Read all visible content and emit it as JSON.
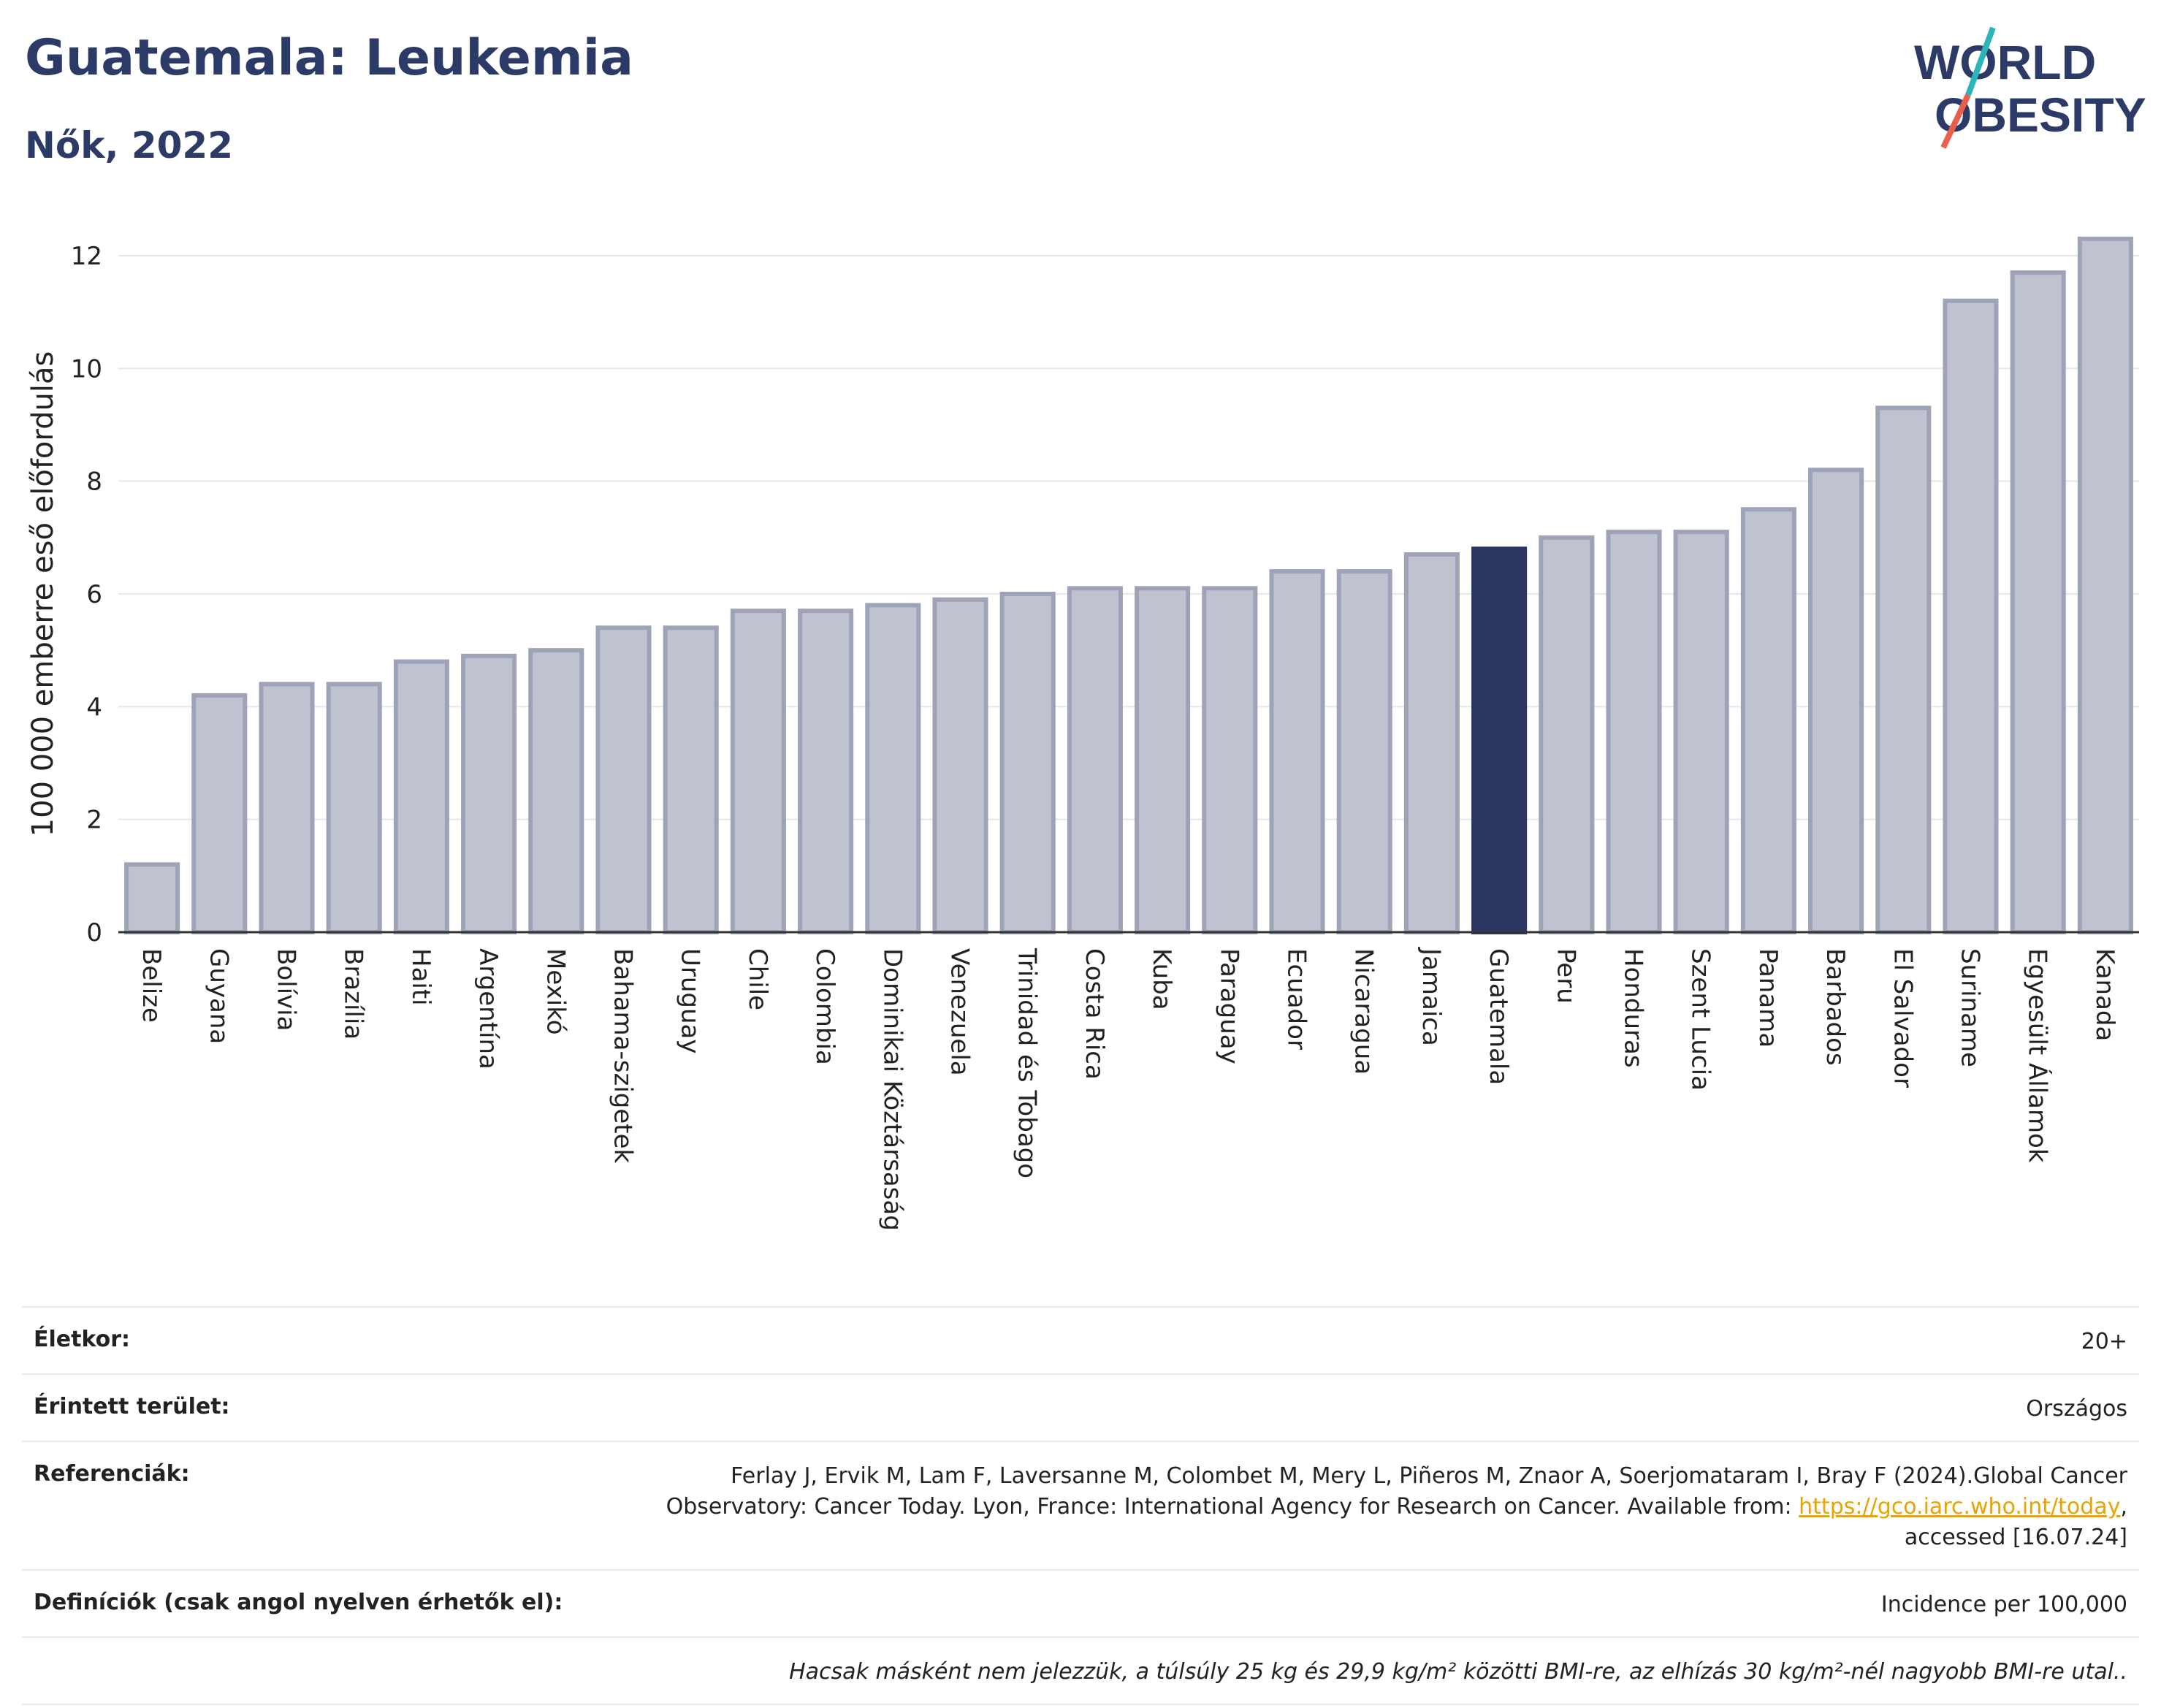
{
  "header": {
    "title": "Guatemala: Leukemia",
    "subtitle": "Nők, 2022"
  },
  "logo": {
    "line1": "WORLD",
    "line2": "OBESITY",
    "brand_color": "#2b3a67",
    "slash_teal": "#2bb5b8",
    "slash_red": "#e8604c"
  },
  "chart_data": {
    "type": "bar",
    "ylabel": "100 000 emberre eső előfordulás",
    "ylim": [
      0,
      12.5
    ],
    "yticks": [
      0,
      2,
      4,
      6,
      8,
      10,
      12
    ],
    "grid": true,
    "highlight": "Guatemala",
    "bar_color": "#bfc3d0",
    "bar_edge_color": "#9ea3b8",
    "highlight_color": "#2b3560",
    "categories": [
      "Belize",
      "Guyana",
      "Bolívia",
      "Brazília",
      "Haiti",
      "Argentína",
      "Mexikó",
      "Bahama-szigetek",
      "Uruguay",
      "Chile",
      "Colombia",
      "Dominikai Köztársaság",
      "Venezuela",
      "Trinidad és Tobago",
      "Costa Rica",
      "Kuba",
      "Paraguay",
      "Ecuador",
      "Nicaragua",
      "Jamaica",
      "Guatemala",
      "Peru",
      "Honduras",
      "Szent Lucia",
      "Panama",
      "Barbados",
      "El Salvador",
      "Suriname",
      "Egyesült Államok",
      "Kanada"
    ],
    "values": [
      1.2,
      4.2,
      4.4,
      4.4,
      4.8,
      4.9,
      5.0,
      5.4,
      5.4,
      5.7,
      5.7,
      5.8,
      5.9,
      6.0,
      6.1,
      6.1,
      6.1,
      6.4,
      6.4,
      6.7,
      6.8,
      7.0,
      7.1,
      7.1,
      7.5,
      8.2,
      9.3,
      11.2,
      11.7,
      12.3
    ]
  },
  "info": {
    "age_label": "Életkor:",
    "age_value": "20+",
    "area_label": "Érintett terület:",
    "area_value": "Országos",
    "ref_label": "Referenciák:",
    "ref_text_1": "Ferlay J, Ervik M, Lam F, Laversanne M, Colombet M, Mery L, Piñeros M, Znaor A, Soerjomataram I, Bray F (2024).Global Cancer",
    "ref_text_2": "Observatory: Cancer Today. Lyon, France: International Agency for Research on Cancer. Available from: ",
    "ref_link": "https://gco.iarc.who.int/today",
    "ref_text_3": ",",
    "ref_text_4": "accessed [16.07.24]",
    "def_label": "Definíciók (csak angol nyelven érhetők el):",
    "def_value": "Incidence per 100,000",
    "note": "Hacsak másként nem jelezzük, a túlsúly 25 kg és 29,9 kg/m² közötti BMI-re, az elhízás 30 kg/m²-nél nagyobb BMI-re utal.."
  }
}
